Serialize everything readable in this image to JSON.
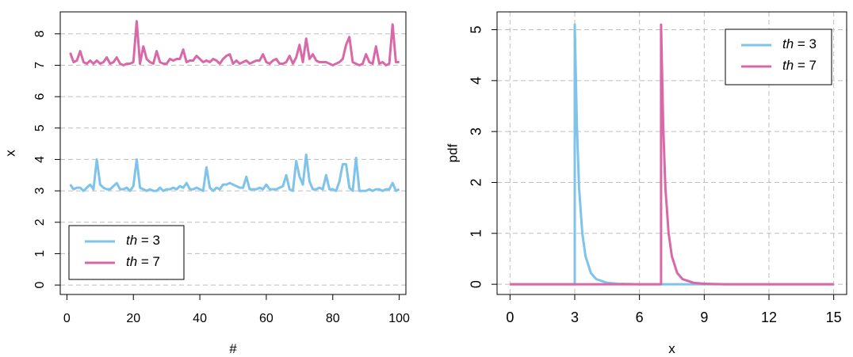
{
  "chart_data": [
    {
      "type": "line",
      "xlabel": "#",
      "ylabel": "x",
      "xlim": [
        -2,
        102
      ],
      "ylim": [
        -0.3,
        8.7
      ],
      "xticks": [
        "0",
        "20",
        "40",
        "60",
        "80",
        "100"
      ],
      "yticks": [
        "0",
        "1",
        "2",
        "3",
        "4",
        "5",
        "6",
        "7",
        "8"
      ],
      "grid": "horizontal dashed",
      "legend_position": "bottom-left",
      "legend": [
        {
          "label": "th = 3",
          "color": "#7ec3ea"
        },
        {
          "label": "th = 7",
          "color": "#d968a8"
        }
      ],
      "series": [
        {
          "name": "th = 3",
          "color": "#7ec3ea",
          "x": [
            1,
            2,
            3,
            4,
            5,
            6,
            7,
            8,
            9,
            10,
            11,
            12,
            13,
            14,
            15,
            16,
            17,
            18,
            19,
            20,
            21,
            22,
            23,
            24,
            25,
            26,
            27,
            28,
            29,
            30,
            31,
            32,
            33,
            34,
            35,
            36,
            37,
            38,
            39,
            40,
            41,
            42,
            43,
            44,
            45,
            46,
            47,
            48,
            49,
            50,
            51,
            52,
            53,
            54,
            55,
            56,
            57,
            58,
            59,
            60,
            61,
            62,
            63,
            64,
            65,
            66,
            67,
            68,
            69,
            70,
            71,
            72,
            73,
            74,
            75,
            76,
            77,
            78,
            79,
            80,
            81,
            82,
            83,
            84,
            85,
            86,
            87,
            88,
            89,
            90,
            91,
            92,
            93,
            94,
            95,
            96,
            97,
            98,
            99,
            100
          ],
          "values": [
            3.2,
            3.05,
            3.1,
            3.1,
            3.0,
            3.1,
            3.2,
            3.05,
            4.0,
            3.2,
            3.1,
            3.05,
            3.05,
            3.15,
            3.25,
            3.05,
            3.05,
            3.1,
            3.0,
            3.15,
            4.0,
            3.1,
            3.05,
            3.0,
            3.05,
            3.0,
            3.0,
            3.1,
            3.0,
            3.05,
            3.05,
            3.1,
            3.05,
            3.15,
            3.1,
            3.25,
            3.05,
            3.05,
            3.1,
            3.05,
            3.0,
            3.75,
            3.1,
            3.0,
            3.1,
            3.05,
            3.2,
            3.2,
            3.25,
            3.2,
            3.15,
            3.1,
            3.1,
            3.45,
            3.05,
            3.05,
            3.05,
            3.1,
            3.05,
            3.2,
            3.05,
            3.05,
            3.05,
            3.1,
            3.15,
            3.5,
            3.05,
            3.0,
            3.95,
            3.45,
            3.2,
            4.15,
            3.3,
            3.05,
            3.05,
            3.1,
            3.05,
            3.5,
            3.05,
            3.05,
            3.0,
            3.3,
            3.85,
            3.85,
            3.1,
            3.0,
            4.05,
            3.0,
            3.0,
            3.0,
            3.05,
            3.0,
            3.05,
            3.05,
            3.0,
            3.05,
            3.05,
            3.25,
            3.0,
            3.05
          ]
        },
        {
          "name": "th = 7",
          "color": "#d968a8",
          "x": [
            1,
            2,
            3,
            4,
            5,
            6,
            7,
            8,
            9,
            10,
            11,
            12,
            13,
            14,
            15,
            16,
            17,
            18,
            19,
            20,
            21,
            22,
            23,
            24,
            25,
            26,
            27,
            28,
            29,
            30,
            31,
            32,
            33,
            34,
            35,
            36,
            37,
            38,
            39,
            40,
            41,
            42,
            43,
            44,
            45,
            46,
            47,
            48,
            49,
            50,
            51,
            52,
            53,
            54,
            55,
            56,
            57,
            58,
            59,
            60,
            61,
            62,
            63,
            64,
            65,
            66,
            67,
            68,
            69,
            70,
            71,
            72,
            73,
            74,
            75,
            76,
            77,
            78,
            79,
            80,
            81,
            82,
            83,
            84,
            85,
            86,
            87,
            88,
            89,
            90,
            91,
            92,
            93,
            94,
            95,
            96,
            97,
            98,
            99,
            100
          ],
          "values": [
            7.4,
            7.1,
            7.15,
            7.45,
            7.1,
            7.05,
            7.15,
            7.05,
            7.15,
            7.05,
            7.1,
            7.25,
            7.05,
            7.1,
            7.25,
            7.05,
            7.0,
            7.05,
            7.05,
            7.1,
            8.4,
            7.05,
            7.6,
            7.2,
            7.1,
            7.05,
            7.45,
            7.1,
            7.05,
            7.05,
            7.2,
            7.15,
            7.2,
            7.2,
            7.5,
            7.1,
            7.15,
            7.15,
            7.3,
            7.2,
            7.1,
            7.15,
            7.1,
            7.2,
            7.15,
            7.05,
            7.2,
            7.3,
            7.35,
            7.05,
            7.15,
            7.05,
            7.1,
            7.15,
            7.05,
            7.1,
            7.15,
            7.15,
            7.35,
            7.1,
            7.05,
            7.15,
            7.2,
            7.05,
            7.05,
            7.1,
            7.3,
            7.05,
            7.25,
            7.65,
            7.1,
            7.85,
            7.2,
            7.35,
            7.15,
            7.1,
            7.1,
            7.1,
            7.05,
            7.0,
            7.05,
            7.1,
            7.2,
            7.65,
            7.9,
            7.1,
            7.05,
            7.0,
            7.05,
            7.35,
            7.1,
            7.05,
            7.6,
            7.05,
            7.1,
            7.0,
            7.05,
            8.3,
            7.1,
            7.1
          ]
        }
      ]
    },
    {
      "type": "line",
      "xlabel": "x",
      "ylabel": "pdf",
      "xlim": [
        -0.6,
        15.6
      ],
      "ylim": [
        -0.2,
        5.35
      ],
      "xticks": [
        "0",
        "3",
        "6",
        "9",
        "12",
        "15"
      ],
      "yticks": [
        "0",
        "1",
        "2",
        "3",
        "4",
        "5"
      ],
      "grid": "both dashed",
      "legend_position": "top-right",
      "legend": [
        {
          "label": "th = 3",
          "color": "#7ec3ea"
        },
        {
          "label": "th = 7",
          "color": "#d968a8"
        }
      ],
      "series": [
        {
          "name": "th = 3",
          "color": "#7ec3ea",
          "x": [
            0,
            3.0,
            3.0,
            3.1,
            3.2,
            3.35,
            3.5,
            3.75,
            4.0,
            4.5,
            5.0,
            6.0,
            9.0,
            15.0
          ],
          "values": [
            0,
            0,
            5.1,
            3.1,
            1.9,
            1.0,
            0.55,
            0.22,
            0.1,
            0.03,
            0.01,
            0.0,
            0,
            0
          ]
        },
        {
          "name": "th = 7",
          "color": "#d968a8",
          "x": [
            0,
            7.0,
            7.0,
            7.1,
            7.2,
            7.35,
            7.5,
            7.75,
            8.0,
            8.5,
            9.0,
            10.0,
            12.0,
            15.0
          ],
          "values": [
            0,
            0,
            5.1,
            3.1,
            1.9,
            1.0,
            0.55,
            0.22,
            0.1,
            0.03,
            0.01,
            0.0,
            0,
            0
          ]
        }
      ]
    }
  ]
}
